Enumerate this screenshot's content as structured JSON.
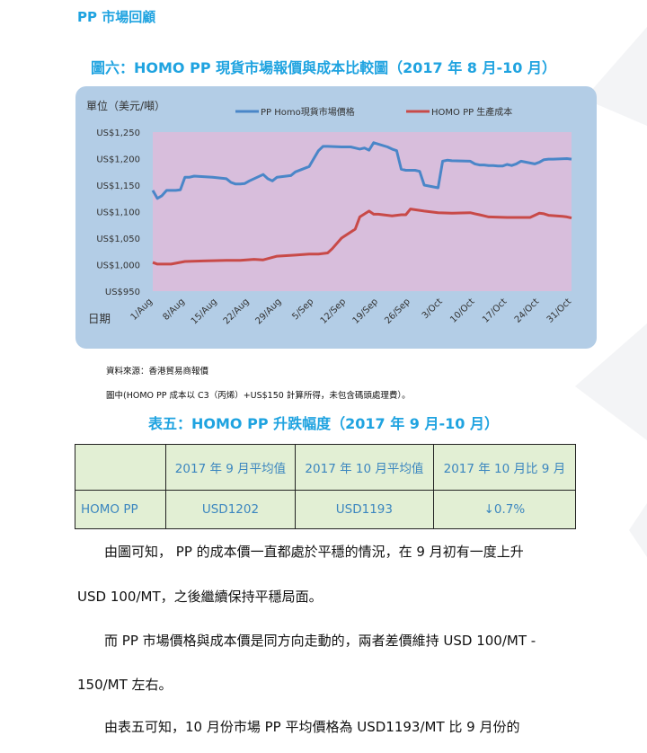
{
  "section_heading": "PP 市場回顧",
  "figure": {
    "title": "圖六：HOMO PP  現貨市場報價與成本比較圖（2017 年 8 月-10 月）",
    "unit_label": "單位（美元/噸）",
    "x_axis_label": "日期"
  },
  "chart_data": {
    "type": "line",
    "ylabel": "單位（美元/噸）",
    "xlabel": "日期",
    "ylim": [
      950,
      1250
    ],
    "y_ticks": [
      "US$1,250",
      "US$1,200",
      "US$1,150",
      "US$1,100",
      "US$1,050",
      "US$1,000",
      "US$950"
    ],
    "y_tick_values": [
      1250,
      1200,
      1150,
      1100,
      1050,
      1000,
      950
    ],
    "x_ticks": [
      "1/Aug",
      "8/Aug",
      "15/Aug",
      "22/Aug",
      "29/Aug",
      "5/Sep",
      "12/Sep",
      "19/Sep",
      "26/Sep",
      "3/Oct",
      "10/Oct",
      "17/Oct",
      "24/Oct",
      "31/Oct"
    ],
    "x_range_days": [
      "2017-08-01",
      "2017-10-31"
    ],
    "grid": false,
    "legend_position": "top",
    "colors": {
      "plot_bg": "#d8bedc",
      "panel_bg": "#b3cde6",
      "series_1": "#4a86c8",
      "series_2": "#c84a48"
    },
    "series": [
      {
        "name": "PP Homo現貨市場價格",
        "color": "#4a86c8",
        "dates": [
          "2017-08-01",
          "2017-08-02",
          "2017-08-03",
          "2017-08-04",
          "2017-08-05",
          "2017-08-06",
          "2017-08-07",
          "2017-08-08",
          "2017-08-09",
          "2017-08-10",
          "2017-08-14",
          "2017-08-17",
          "2017-08-18",
          "2017-08-19",
          "2017-08-20",
          "2017-08-21",
          "2017-08-22",
          "2017-08-25",
          "2017-08-26",
          "2017-08-27",
          "2017-08-28",
          "2017-08-31",
          "2017-09-01",
          "2017-09-04",
          "2017-09-05",
          "2017-09-06",
          "2017-09-07",
          "2017-09-08",
          "2017-09-11",
          "2017-09-13",
          "2017-09-14",
          "2017-09-15",
          "2017-09-16",
          "2017-09-17",
          "2017-09-18",
          "2017-09-21",
          "2017-09-22",
          "2017-09-23",
          "2017-09-24",
          "2017-09-25",
          "2017-09-26",
          "2017-09-27",
          "2017-09-28",
          "2017-09-29",
          "2017-10-02",
          "2017-10-03",
          "2017-10-04",
          "2017-10-05",
          "2017-10-09",
          "2017-10-10",
          "2017-10-11",
          "2017-10-12",
          "2017-10-13",
          "2017-10-14",
          "2017-10-15",
          "2017-10-16",
          "2017-10-17",
          "2017-10-18",
          "2017-10-19",
          "2017-10-20",
          "2017-10-23",
          "2017-10-24",
          "2017-10-25",
          "2017-10-26",
          "2017-10-27",
          "2017-10-30",
          "2017-10-31"
        ],
        "values": [
          1140,
          1125,
          1130,
          1140,
          1140,
          1140,
          1141,
          1165,
          1165,
          1167,
          1165,
          1162,
          1155,
          1152,
          1152,
          1153,
          1158,
          1170,
          1162,
          1158,
          1165,
          1168,
          1175,
          1185,
          1200,
          1215,
          1223,
          1223,
          1222,
          1222,
          1220,
          1218,
          1220,
          1216,
          1230,
          1222,
          1218,
          1215,
          1180,
          1178,
          1178,
          1178,
          1176,
          1150,
          1145,
          1195,
          1197,
          1196,
          1195,
          1190,
          1188,
          1188,
          1187,
          1187,
          1186,
          1186,
          1189,
          1187,
          1190,
          1195,
          1190,
          1193,
          1198,
          1199,
          1199,
          1200,
          1199
        ]
      },
      {
        "name": "HOMO PP  生產成本",
        "color": "#c84a48",
        "dates": [
          "2017-08-01",
          "2017-08-02",
          "2017-08-05",
          "2017-08-08",
          "2017-08-12",
          "2017-08-17",
          "2017-08-20",
          "2017-08-23",
          "2017-08-25",
          "2017-08-28",
          "2017-09-01",
          "2017-09-04",
          "2017-09-06",
          "2017-09-08",
          "2017-09-09",
          "2017-09-11",
          "2017-09-14",
          "2017-09-15",
          "2017-09-17",
          "2017-09-18",
          "2017-09-19",
          "2017-09-22",
          "2017-09-24",
          "2017-09-25",
          "2017-09-26",
          "2017-09-29",
          "2017-10-02",
          "2017-10-05",
          "2017-10-09",
          "2017-10-10",
          "2017-10-11",
          "2017-10-12",
          "2017-10-13",
          "2017-10-17",
          "2017-10-19",
          "2017-10-22",
          "2017-10-24",
          "2017-10-25",
          "2017-10-26",
          "2017-10-29",
          "2017-10-30",
          "2017-10-31"
        ],
        "values": [
          1004,
          1001,
          1001,
          1006,
          1007,
          1008,
          1008,
          1010,
          1009,
          1016,
          1018,
          1020,
          1020,
          1022,
          1030,
          1050,
          1067,
          1090,
          1101,
          1095,
          1095,
          1092,
          1094,
          1094,
          1105,
          1101,
          1098,
          1097,
          1098,
          1096,
          1094,
          1092,
          1090,
          1089,
          1089,
          1089,
          1097,
          1096,
          1093,
          1091,
          1090,
          1088
        ]
      }
    ]
  },
  "source_text": "資料來源：香港貿易商報價",
  "note_text": "圖中(HOMO PP  成本以 C3（丙烯）+US$150  計算所得，未包含碼頭處理費）。",
  "table": {
    "title": "表五：HOMO PP 升跌幅度（2017 年 9 月-10 月）",
    "headers": [
      "",
      "2017 年 9 月平均值",
      "2017 年 10 月平均值",
      "2017 年 10 月比 9 月"
    ],
    "rows": [
      [
        "HOMO PP",
        "USD1202",
        "USD1193",
        "↓0.7%"
      ]
    ]
  },
  "paragraphs": [
    "由圖可知，  PP 的成本價一直都處於平穩的情況，在 9 月初有一度上升",
    "USD 100/MT，之後繼續保持平穩局面。",
    "而 PP 市場價格與成本價是同方向走動的，兩者差價維持  USD 100/MT -",
    "150/MT  左右。",
    "由表五可知，10 月份市場 PP 平均價格為 USD1193/MT  比 9 月份的"
  ]
}
